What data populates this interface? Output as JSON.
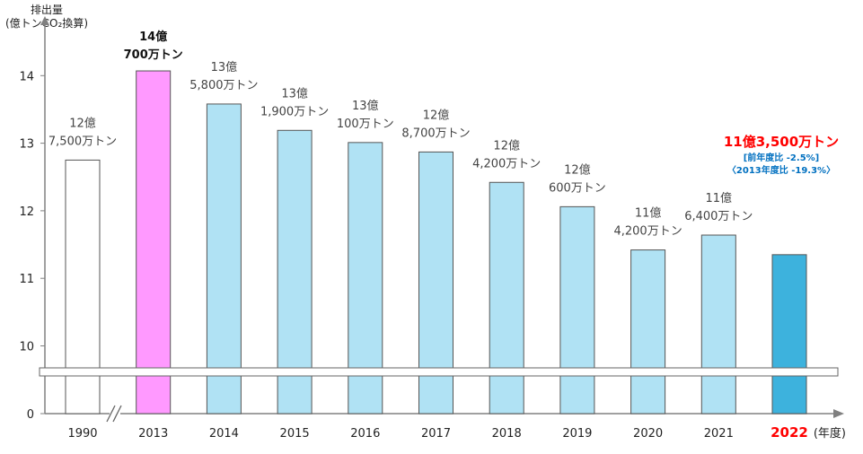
{
  "chart_data": {
    "type": "bar",
    "ylabel_line1": "排出量",
    "ylabel_line2": "(億トンCO₂換算)",
    "xlabel": "(年度)",
    "y_ticks": [
      "0",
      "10",
      "11",
      "12",
      "13",
      "14"
    ],
    "ylim": [
      0,
      14.5
    ],
    "axis_break": true,
    "categories": [
      "1990",
      "2013",
      "2014",
      "2015",
      "2016",
      "2017",
      "2018",
      "2019",
      "2020",
      "2021",
      "2022"
    ],
    "values": [
      12.75,
      14.07,
      13.58,
      13.19,
      13.01,
      12.87,
      12.42,
      12.06,
      11.42,
      11.64,
      11.35
    ],
    "bar_colors": [
      "#ffffff",
      "#ff99ff",
      "#b0e2f4",
      "#b0e2f4",
      "#b0e2f4",
      "#b0e2f4",
      "#b0e2f4",
      "#b0e2f4",
      "#b0e2f4",
      "#b0e2f4",
      "#3db2dd"
    ],
    "bar_labels": [
      [
        "12億",
        "7,500万トン"
      ],
      [
        "14億",
        "700万トン"
      ],
      [
        "13億",
        "5,800万トン"
      ],
      [
        "13億",
        "1,900万トン"
      ],
      [
        "13億",
        "100万トン"
      ],
      [
        "12億",
        "8,700万トン"
      ],
      [
        "12億",
        "4,200万トン"
      ],
      [
        "12億",
        "600万トン"
      ],
      [
        "11億",
        "4,200万トン"
      ],
      [
        "11億",
        "6,400万トン"
      ]
    ],
    "highlight": {
      "value_label": "11億3,500万トン",
      "yoy_note": "[前年度比 -2.5%]",
      "vs2013_note": "〈2013年度比 -19.3%〉",
      "label_color": "#ff0000",
      "note_color": "#0070c0"
    }
  }
}
